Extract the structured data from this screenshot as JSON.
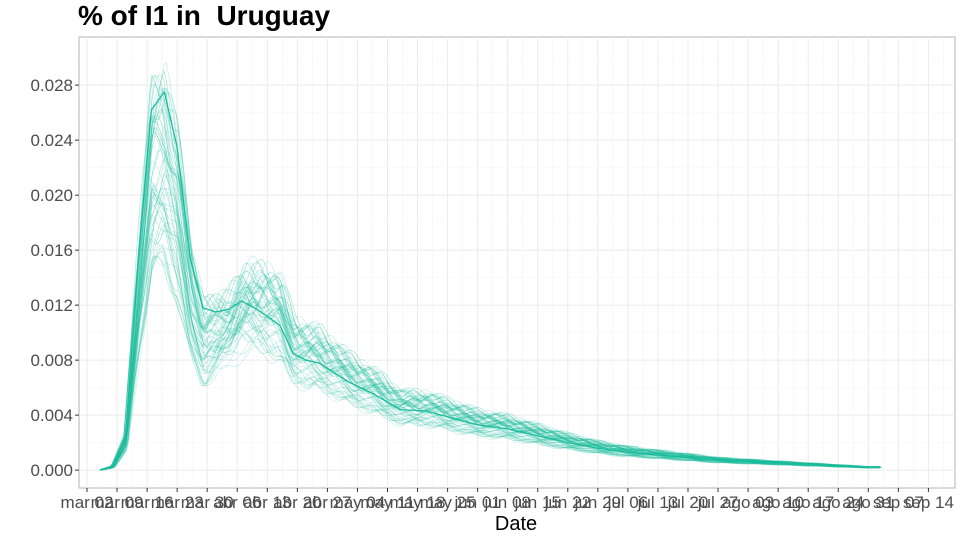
{
  "chart_data": {
    "type": "line",
    "title": "% of I1 in  Uruguay",
    "xlabel": "Date",
    "ylabel": "",
    "x_ticks": [
      "mar 02",
      "mar 09",
      "mar 16",
      "mar 23",
      "mar 30",
      "abr 06",
      "abr 13",
      "abr 20",
      "abr 27",
      "may 04",
      "may 11",
      "may 18",
      "may 25",
      "jun 01",
      "jun 08",
      "jun 15",
      "jun 22",
      "jun 29",
      "jul 06",
      "jul 13",
      "jul 20",
      "jul 27",
      "ago 03",
      "ago 10",
      "ago 17",
      "ago 24",
      "ago 31",
      "sep 07",
      "sep 14"
    ],
    "y_ticks": [
      "0.000",
      "0.004",
      "0.008",
      "0.012",
      "0.016",
      "0.020",
      "0.024",
      "0.028"
    ],
    "ylim": [
      -0.0013,
      0.0315
    ],
    "grid": true,
    "legend": "none",
    "line_color": "#1abc9c",
    "highlighted_series": {
      "x": [
        "mar 05",
        "mar 08",
        "mar 11",
        "mar 14",
        "mar 17",
        "mar 20",
        "mar 23",
        "mar 26",
        "mar 29",
        "abr 01",
        "abr 04",
        "abr 07",
        "abr 10",
        "abr 13",
        "abr 16",
        "abr 19",
        "abr 22",
        "abr 25",
        "abr 28",
        "may 02",
        "may 08",
        "may 14",
        "may 20",
        "may 26",
        "jun 01",
        "jun 08",
        "jun 15",
        "jun 22",
        "jun 29",
        "jul 06",
        "jul 13",
        "jul 20",
        "jul 27",
        "ago 03",
        "ago 10",
        "ago 17",
        "ago 24",
        "ago 31",
        "sep 03"
      ],
      "y": [
        0.0,
        0.0003,
        0.0025,
        0.0155,
        0.0262,
        0.0275,
        0.0235,
        0.0155,
        0.0118,
        0.0115,
        0.0117,
        0.0123,
        0.0118,
        0.0112,
        0.0105,
        0.0085,
        0.008,
        0.0078,
        0.0072,
        0.0064,
        0.0055,
        0.0044,
        0.0043,
        0.0038,
        0.0033,
        0.003,
        0.0025,
        0.002,
        0.0016,
        0.0013,
        0.0011,
        0.0009,
        0.0007,
        0.0006,
        0.0005,
        0.0004,
        0.0003,
        0.0002,
        0.0002
      ]
    }
  }
}
